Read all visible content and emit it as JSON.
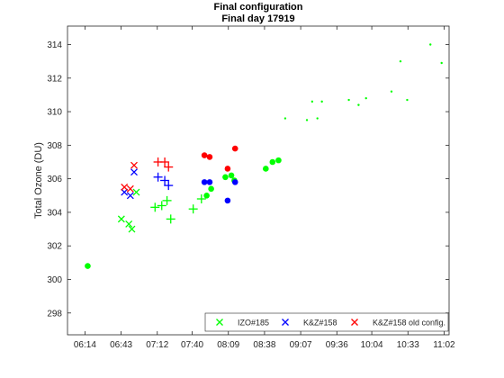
{
  "chart_data": {
    "type": "scatter",
    "title": "Final configuration",
    "subtitle": "Final day 17919",
    "xlabel": "",
    "ylabel": "Total Ozone (DU)",
    "xlim": [
      6.0,
      11.1
    ],
    "ylim": [
      296.7,
      315.1
    ],
    "x_ticks": [
      6.2333,
      6.7167,
      7.2,
      7.6667,
      8.15,
      8.6333,
      9.1167,
      9.6,
      10.0667,
      10.55,
      11.0333
    ],
    "x_tick_labels": [
      "06:14",
      "06:43",
      "07:12",
      "07:40",
      "08:09",
      "08:38",
      "09:07",
      "09:36",
      "10:04",
      "10:33",
      "11:02"
    ],
    "y_ticks": [
      298,
      300,
      302,
      304,
      306,
      308,
      310,
      312,
      314
    ],
    "y_tick_labels": [
      "298",
      "300",
      "302",
      "304",
      "306",
      "308",
      "310",
      "312",
      "314"
    ],
    "grid": false,
    "legend_position": "bottom-right",
    "series": [
      {
        "name": "IZO#185",
        "color": "#00ff00",
        "marker": "x",
        "points": [
          [
            6.72,
            303.6
          ],
          [
            6.82,
            303.3
          ],
          [
            6.86,
            303.0
          ],
          [
            6.92,
            305.2
          ]
        ]
      },
      {
        "name": "K&Z#158",
        "color": "#0000ff",
        "marker": "x",
        "points": [
          [
            6.76,
            305.2
          ],
          [
            6.84,
            305.0
          ],
          [
            6.89,
            306.4
          ]
        ]
      },
      {
        "name": "K&Z#158 old config.",
        "color": "#ff0000",
        "marker": "x",
        "points": [
          [
            6.76,
            305.5
          ],
          [
            6.84,
            305.4
          ],
          [
            6.89,
            306.8
          ]
        ]
      },
      {
        "name": "",
        "color": "#00ff00",
        "marker": "+",
        "points": [
          [
            7.17,
            304.3
          ],
          [
            7.26,
            304.4
          ],
          [
            7.33,
            304.7
          ],
          [
            7.38,
            303.6
          ],
          [
            7.68,
            304.2
          ],
          [
            7.79,
            304.8
          ]
        ]
      },
      {
        "name": "",
        "color": "#0000ff",
        "marker": "+",
        "points": [
          [
            7.21,
            306.1
          ],
          [
            7.3,
            305.9
          ],
          [
            7.35,
            305.6
          ]
        ]
      },
      {
        "name": "",
        "color": "#ff0000",
        "marker": "+",
        "points": [
          [
            7.21,
            307.0
          ],
          [
            7.3,
            307.0
          ],
          [
            7.35,
            306.7
          ]
        ]
      },
      {
        "name": "",
        "color": "#00ff00",
        "marker": "o",
        "points": [
          [
            6.27,
            300.8
          ],
          [
            7.86,
            305.0
          ],
          [
            7.92,
            305.4
          ],
          [
            8.11,
            306.1
          ],
          [
            8.19,
            306.2
          ],
          [
            8.23,
            305.9
          ],
          [
            8.65,
            306.6
          ],
          [
            8.74,
            307.0
          ],
          [
            8.82,
            307.1
          ]
        ]
      },
      {
        "name": "",
        "color": "#0000ff",
        "marker": "o",
        "points": [
          [
            7.83,
            305.8
          ],
          [
            7.9,
            305.8
          ],
          [
            8.14,
            304.7
          ],
          [
            8.24,
            305.8
          ]
        ]
      },
      {
        "name": "",
        "color": "#ff0000",
        "marker": "o",
        "points": [
          [
            7.83,
            307.4
          ],
          [
            7.9,
            307.3
          ],
          [
            8.14,
            306.6
          ],
          [
            8.24,
            307.8
          ]
        ]
      },
      {
        "name": "",
        "color": "#00ff00",
        "marker": ".",
        "points": [
          [
            8.91,
            309.6
          ],
          [
            9.2,
            309.5
          ],
          [
            9.27,
            310.6
          ],
          [
            9.34,
            309.6
          ],
          [
            9.4,
            310.6
          ],
          [
            9.76,
            310.7
          ],
          [
            9.89,
            310.4
          ],
          [
            9.99,
            310.8
          ],
          [
            10.33,
            311.2
          ],
          [
            10.45,
            313.0
          ],
          [
            10.54,
            310.7
          ],
          [
            10.85,
            314.0
          ],
          [
            11.0,
            312.9
          ]
        ]
      }
    ]
  }
}
